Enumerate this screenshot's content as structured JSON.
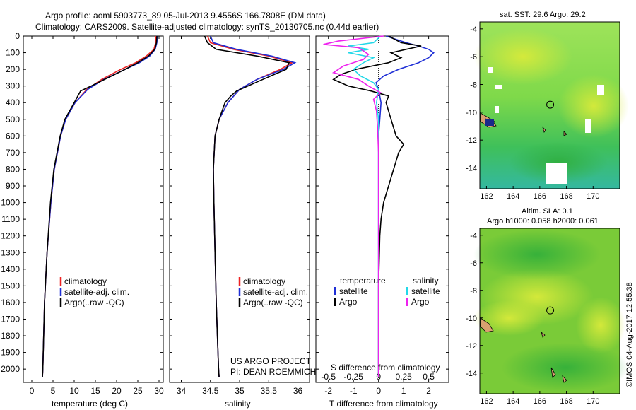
{
  "header": {
    "line1": "Argo profile: aoml 5903773_89 05-Jul-2013 9.4556S 166.7808E (DM data)",
    "line2": "Climatology: CARS2009. Satellite-adjusted climatology: synTS_20130705.nc (0.44d earlier)"
  },
  "footer": {
    "timestamp": "©IMOS 04-Aug-2017 12:55:38",
    "project": "US ARGO PROJECT",
    "pi": "PI: DEAN ROEMMICH"
  },
  "colors": {
    "clim": "#ee2222",
    "sat": "#1f2fd6",
    "argo": "#000000",
    "sat_s": "#22d8e8",
    "argo_s": "#ee22ee"
  },
  "chart_data": [
    {
      "type": "line",
      "title": "",
      "xlabel": "temperature (deg C)",
      "ylabel": "",
      "xlim": [
        -2,
        31
      ],
      "ylim": [
        2080,
        0
      ],
      "xticks": [
        "0",
        "5",
        "10",
        "15",
        "20",
        "25",
        "30"
      ],
      "yticks": [
        "0",
        "100",
        "200",
        "300",
        "400",
        "500",
        "600",
        "700",
        "800",
        "900",
        "1000",
        "1100",
        "1200",
        "1300",
        "1400",
        "1500",
        "1600",
        "1700",
        "1800",
        "1900",
        "2000"
      ],
      "legend": [
        "climatology",
        "satellite-adj. clim.",
        "Argo(..raw -QC)"
      ],
      "series": [
        {
          "name": "climatology",
          "depth": [
            0,
            40,
            80,
            120,
            160,
            200,
            260,
            320,
            400,
            500,
            600,
            800,
            1000,
            1300,
            1600,
            2000,
            2050
          ],
          "values": [
            29.3,
            29.2,
            28.8,
            27.0,
            24.5,
            21.0,
            16.5,
            13.0,
            10.2,
            8.0,
            6.8,
            5.3,
            4.5,
            3.6,
            3.0,
            2.6,
            2.5
          ]
        },
        {
          "name": "satellite-adj. clim.",
          "depth": [
            0,
            40,
            80,
            120,
            160,
            200,
            260,
            320,
            400,
            500,
            600,
            800,
            1000,
            1300,
            1600,
            2000,
            2050
          ],
          "values": [
            29.6,
            29.5,
            29.1,
            27.8,
            25.4,
            22.0,
            17.0,
            13.2,
            10.2,
            8.0,
            6.8,
            5.3,
            4.5,
            3.6,
            3.0,
            2.6,
            2.5
          ]
        },
        {
          "name": "Argo(..raw -QC)",
          "depth": [
            0,
            40,
            80,
            120,
            160,
            200,
            250,
            300,
            330,
            400,
            500,
            600,
            800,
            1000,
            1300,
            1600,
            2000,
            2050
          ],
          "values": [
            29.5,
            29.4,
            29.0,
            27.5,
            25.0,
            22.0,
            18.0,
            14.0,
            11.5,
            10.0,
            7.8,
            6.7,
            5.2,
            4.4,
            3.6,
            3.0,
            2.6,
            2.5
          ]
        }
      ]
    },
    {
      "type": "line",
      "xlabel": "salinity",
      "xlim": [
        33.8,
        36.2
      ],
      "ylim": [
        2080,
        0
      ],
      "xticks": [
        "34",
        "34.5",
        "35",
        "35.5",
        "36"
      ],
      "legend": [
        "climatology",
        "satellite-adj. clim.",
        "Argo(..raw -QC)"
      ],
      "series": [
        {
          "name": "climatology",
          "depth": [
            0,
            40,
            80,
            120,
            160,
            200,
            260,
            320,
            400,
            500,
            600,
            800,
            1000,
            1300,
            1600,
            2000,
            2050
          ],
          "values": [
            34.45,
            34.5,
            34.9,
            35.5,
            35.9,
            35.7,
            35.3,
            35.0,
            34.8,
            34.65,
            34.58,
            34.55,
            34.56,
            34.58,
            34.6,
            34.64,
            34.65
          ]
        },
        {
          "name": "satellite-adj. clim.",
          "depth": [
            0,
            40,
            80,
            120,
            160,
            200,
            260,
            320,
            400,
            500,
            600,
            800,
            1000,
            1300,
            1600,
            2000,
            2050
          ],
          "values": [
            34.5,
            34.55,
            34.95,
            35.55,
            35.95,
            35.75,
            35.3,
            35.0,
            34.8,
            34.65,
            34.58,
            34.55,
            34.56,
            34.58,
            34.6,
            34.64,
            34.65
          ]
        },
        {
          "name": "Argo(..raw -QC)",
          "depth": [
            0,
            40,
            80,
            120,
            160,
            200,
            260,
            330,
            360,
            400,
            500,
            600,
            800,
            1000,
            1300,
            1600,
            2000,
            2050
          ],
          "values": [
            34.4,
            34.45,
            34.6,
            35.3,
            35.85,
            35.8,
            35.4,
            34.95,
            34.85,
            34.75,
            34.65,
            34.58,
            34.55,
            34.56,
            34.58,
            34.6,
            34.64,
            34.65
          ]
        }
      ]
    },
    {
      "type": "line",
      "xlabel": "T difference from climatology",
      "xlabel2": "S difference from climatology",
      "xlim": [
        -2.5,
        2.8
      ],
      "ylim": [
        2080,
        0
      ],
      "xticks": [
        "-2",
        "-1",
        "0",
        "1",
        "2"
      ],
      "xticks2": [
        "-0.5",
        "-0.25",
        "0",
        "0.25",
        "0.5"
      ],
      "legend_headers": [
        "temperature",
        "salinity"
      ],
      "legend": [
        "satellite",
        "Argo",
        "satellite",
        "Argo"
      ],
      "series": [
        {
          "name": "T satellite",
          "depth": [
            0,
            40,
            60,
            80,
            100,
            130,
            160,
            200,
            240,
            280,
            320,
            400,
            500,
            600,
            800,
            1000,
            1500,
            2050
          ],
          "values": [
            0.3,
            1.1,
            1.6,
            2.0,
            2.2,
            2.0,
            1.6,
            0.8,
            0.2,
            -0.1,
            0.0,
            0.1,
            0.05,
            0.0,
            0.0,
            0.0,
            0.0,
            0.0
          ]
        },
        {
          "name": "T Argo",
          "depth": [
            0,
            40,
            60,
            80,
            100,
            130,
            160,
            200,
            230,
            260,
            300,
            330,
            360,
            400,
            500,
            600,
            650,
            700,
            800,
            900,
            1000,
            1100,
            1200,
            1500,
            2050
          ],
          "values": [
            0.4,
            0.9,
            1.7,
            1.1,
            0.5,
            0.9,
            0.4,
            -0.9,
            -1.5,
            -1.8,
            -1.2,
            -0.3,
            0.4,
            0.3,
            0.5,
            0.7,
            1.0,
            0.8,
            0.6,
            0.4,
            0.2,
            0.1,
            0.05,
            0.0,
            0.0
          ]
        },
        {
          "name": "S satellite",
          "depth": [
            0,
            40,
            60,
            80,
            100,
            130,
            160,
            200,
            240,
            280,
            320,
            400,
            500,
            700,
            1000,
            1500,
            2050
          ],
          "values": [
            0.02,
            -0.05,
            -0.3,
            -0.1,
            -0.3,
            -0.05,
            -0.15,
            -0.25,
            -0.18,
            -0.05,
            0.0,
            -0.02,
            0.0,
            0.0,
            0.0,
            0.0,
            0.0
          ]
        },
        {
          "name": "S Argo",
          "depth": [
            0,
            30,
            50,
            70,
            90,
            110,
            140,
            180,
            220,
            260,
            300,
            340,
            380,
            450,
            550,
            700,
            1000,
            1500,
            2050
          ],
          "values": [
            0.05,
            -0.4,
            -0.55,
            -0.2,
            -0.15,
            -0.1,
            -0.15,
            -0.35,
            -0.45,
            -0.2,
            -0.1,
            0.02,
            -0.05,
            -0.02,
            -0.01,
            0.0,
            0.0,
            0.0,
            0.0
          ]
        }
      ]
    },
    {
      "type": "heatmap",
      "title": "sat. SST: 29.6 Argo: 29.2",
      "xlim": [
        161.5,
        172
      ],
      "ylim": [
        -15.5,
        -3.5
      ],
      "xticks": [
        "162",
        "164",
        "166",
        "168",
        "170"
      ],
      "yticks": [
        "-4",
        "-6",
        "-8",
        "-10",
        "-12",
        "-14"
      ],
      "marker": {
        "lon": 166.7808,
        "lat": -9.4556
      }
    },
    {
      "type": "heatmap",
      "title": "Altim. SLA: 0.1",
      "subtitle": "Argo h1000: 0.058 h2000: 0.061",
      "xlim": [
        161.5,
        172
      ],
      "ylim": [
        -15.5,
        -3.5
      ],
      "xticks": [
        "162",
        "164",
        "166",
        "168",
        "170"
      ],
      "yticks": [
        "-4",
        "-6",
        "-8",
        "-10",
        "-12",
        "-14"
      ],
      "marker": {
        "lon": 166.7808,
        "lat": -9.4556
      }
    }
  ]
}
